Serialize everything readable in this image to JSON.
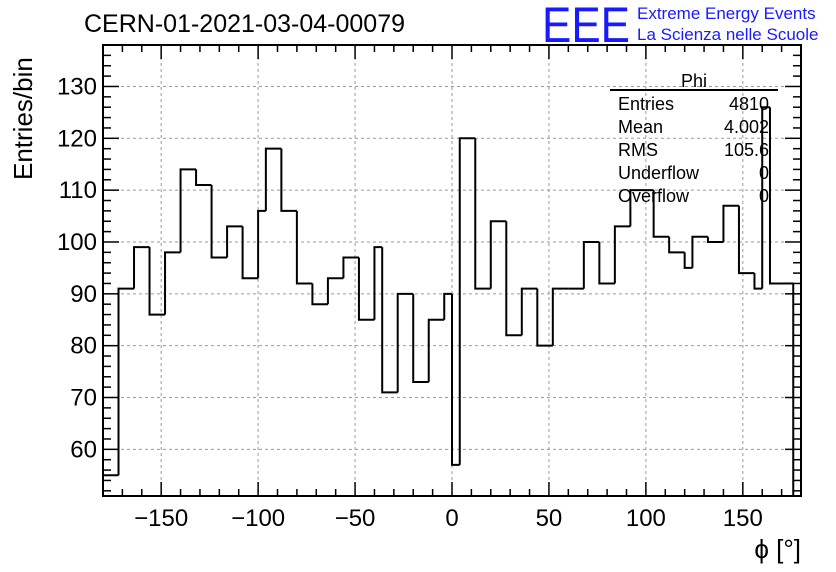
{
  "chart_data": {
    "type": "bar",
    "title": "CERN-01-2021-03-04-00079",
    "xlabel": "ϕ [°]",
    "ylabel": "Entries/bin",
    "xlim": [
      -180,
      180
    ],
    "ylim": [
      51,
      138
    ],
    "bin_width": 8,
    "x_ticks": [
      -150,
      -100,
      -50,
      0,
      50,
      100,
      150
    ],
    "y_ticks": [
      60,
      70,
      80,
      90,
      100,
      110,
      120,
      130
    ],
    "grid": true,
    "bins": [
      [
        -180,
        -172,
        55
      ],
      [
        -172,
        -164,
        91
      ],
      [
        -164,
        -156,
        99
      ],
      [
        -156,
        -148,
        86
      ],
      [
        -148,
        -140,
        98
      ],
      [
        -140,
        -132,
        114
      ],
      [
        -132,
        -124,
        111
      ],
      [
        -124,
        -116,
        97
      ],
      [
        -116,
        -108,
        103
      ],
      [
        -108,
        -100,
        93
      ],
      [
        -100,
        -96,
        106
      ],
      [
        -96,
        -88,
        118
      ],
      [
        -88,
        -80,
        106
      ],
      [
        -80,
        -72,
        92
      ],
      [
        -72,
        -64,
        88
      ],
      [
        -64,
        -56,
        93
      ],
      [
        -56,
        -48,
        97
      ],
      [
        -48,
        -40,
        85
      ],
      [
        -40,
        -36,
        99
      ],
      [
        -36,
        -28,
        71
      ],
      [
        -28,
        -20,
        90
      ],
      [
        -20,
        -12,
        73
      ],
      [
        -12,
        -4,
        85
      ],
      [
        -4,
        0,
        90
      ],
      [
        0,
        4,
        57
      ],
      [
        4,
        12,
        120
      ],
      [
        12,
        20,
        91
      ],
      [
        20,
        28,
        104
      ],
      [
        28,
        36,
        82
      ],
      [
        36,
        44,
        91
      ],
      [
        44,
        52,
        80
      ],
      [
        52,
        60,
        91
      ],
      [
        60,
        68,
        91
      ],
      [
        68,
        76,
        100
      ],
      [
        76,
        84,
        92
      ],
      [
        84,
        92,
        103
      ],
      [
        92,
        100,
        110
      ],
      [
        100,
        104,
        110
      ],
      [
        104,
        112,
        101
      ],
      [
        112,
        120,
        98
      ],
      [
        120,
        124,
        95
      ],
      [
        124,
        132,
        101
      ],
      [
        132,
        140,
        100
      ],
      [
        140,
        148,
        107
      ],
      [
        148,
        156,
        94
      ],
      [
        156,
        160,
        91
      ],
      [
        160,
        164,
        126
      ],
      [
        164,
        172,
        92
      ],
      [
        172,
        176,
        92
      ]
    ],
    "stats": {
      "name": "Phi",
      "rows": [
        {
          "label": "Entries",
          "value": "4810"
        },
        {
          "label": "Mean",
          "value": "4.002"
        },
        {
          "label": "RMS",
          "value": "105.6"
        },
        {
          "label": "Underflow",
          "value": "0"
        },
        {
          "label": "Overflow",
          "value": "0"
        }
      ]
    }
  },
  "logo": {
    "mark": "EEE",
    "line1": "Extreme Energy Events",
    "line2": "La Scienza nelle Scuole",
    "color": "#1a1aff"
  }
}
